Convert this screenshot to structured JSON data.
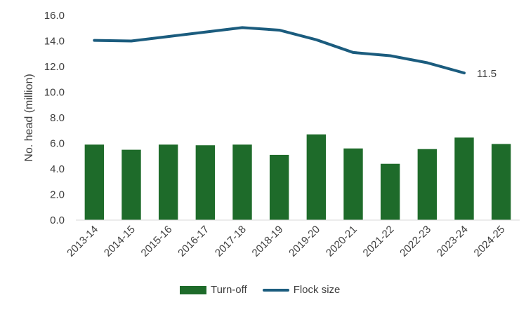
{
  "chart_data": {
    "type": "bar",
    "categories": [
      "2013-14",
      "2014-15",
      "2015-16",
      "2016-17",
      "2017-18",
      "2018-19",
      "2019-20",
      "2020-21",
      "2021-22",
      "2022-23",
      "2023-24",
      "2024-25"
    ],
    "series": [
      {
        "name": "Turn-off",
        "type": "bar",
        "color": "#1e6b2a",
        "values": [
          5.9,
          5.5,
          5.9,
          5.85,
          5.9,
          5.1,
          6.7,
          5.6,
          4.4,
          5.55,
          6.45,
          5.95
        ]
      },
      {
        "name": "Flock size",
        "type": "line",
        "color": "#1b5c7e",
        "values": [
          14.05,
          14.0,
          14.35,
          14.7,
          15.05,
          14.85,
          14.1,
          13.1,
          12.85,
          12.3,
          11.5,
          null
        ]
      }
    ],
    "ylabel": "No. head (million)",
    "ylim": [
      0,
      16
    ],
    "yticks": [
      "0.0",
      "2.0",
      "4.0",
      "6.0",
      "8.0",
      "10.0",
      "12.0",
      "14.0",
      "16.0"
    ],
    "annotation": {
      "text": "11.5",
      "series": "Flock size",
      "category": "2023-24"
    },
    "legend_position": "bottom",
    "grid": false
  }
}
